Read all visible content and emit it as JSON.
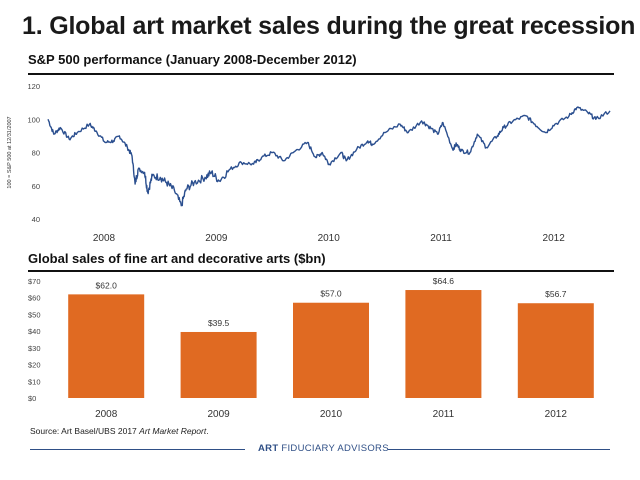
{
  "header": {
    "title": "1. Global art market sales during the great recession"
  },
  "chart_data": [
    {
      "type": "line",
      "title": "S&P 500 performance (January 2008-December 2012)",
      "ylabel": "100 = S&P 500 at 12/31/2007",
      "xlabel": "",
      "ylim": [
        40,
        120
      ],
      "yticks": [
        40,
        60,
        80,
        100,
        120
      ],
      "xticks": [
        "2008",
        "2009",
        "2010",
        "2011",
        "2012"
      ],
      "grid": false,
      "series": [
        {
          "color": "#2b4f8f",
          "points": [
            [
              "2008-01-01",
              100
            ],
            [
              "2008-01-20",
              91
            ],
            [
              "2008-02-10",
              95
            ],
            [
              "2008-03-10",
              88
            ],
            [
              "2008-04-05",
              92
            ],
            [
              "2008-05-15",
              97
            ],
            [
              "2008-06-05",
              93
            ],
            [
              "2008-07-05",
              86
            ],
            [
              "2008-08-01",
              87
            ],
            [
              "2008-08-20",
              90
            ],
            [
              "2008-09-15",
              83
            ],
            [
              "2008-09-30",
              78
            ],
            [
              "2008-10-10",
              61
            ],
            [
              "2008-10-20",
              70
            ],
            [
              "2008-11-10",
              68
            ],
            [
              "2008-11-20",
              56
            ],
            [
              "2008-12-05",
              66
            ],
            [
              "2008-12-31",
              65
            ],
            [
              "2009-01-20",
              62
            ],
            [
              "2009-02-15",
              57
            ],
            [
              "2009-03-09",
              48
            ],
            [
              "2009-03-25",
              58
            ],
            [
              "2009-04-20",
              62
            ],
            [
              "2009-05-25",
              65
            ],
            [
              "2009-06-15",
              68
            ],
            [
              "2009-07-10",
              63
            ],
            [
              "2009-08-15",
              70
            ],
            [
              "2009-09-20",
              74
            ],
            [
              "2009-10-30",
              73
            ],
            [
              "2009-11-25",
              77
            ],
            [
              "2009-12-31",
              80
            ],
            [
              "2010-02-05",
              75
            ],
            [
              "2010-03-15",
              81
            ],
            [
              "2010-04-23",
              86
            ],
            [
              "2010-05-20",
              77
            ],
            [
              "2010-06-10",
              80
            ],
            [
              "2010-07-02",
              73
            ],
            [
              "2010-08-10",
              80
            ],
            [
              "2010-08-27",
              75
            ],
            [
              "2010-09-30",
              82
            ],
            [
              "2010-11-05",
              87
            ],
            [
              "2010-11-20",
              85
            ],
            [
              "2010-12-31",
              92
            ],
            [
              "2011-02-18",
              97
            ],
            [
              "2011-03-16",
              92
            ],
            [
              "2011-04-29",
              99
            ],
            [
              "2011-05-20",
              96
            ],
            [
              "2011-06-20",
              91
            ],
            [
              "2011-07-07",
              98
            ],
            [
              "2011-08-08",
              82
            ],
            [
              "2011-08-20",
              85
            ],
            [
              "2011-09-05",
              81
            ],
            [
              "2011-10-03",
              80
            ],
            [
              "2011-10-27",
              91
            ],
            [
              "2011-11-25",
              83
            ],
            [
              "2011-12-31",
              90
            ],
            [
              "2012-01-20",
              95
            ],
            [
              "2012-02-20",
              99
            ],
            [
              "2012-04-02",
              102
            ],
            [
              "2012-05-01",
              97
            ],
            [
              "2012-06-04",
              92
            ],
            [
              "2012-07-05",
              97
            ],
            [
              "2012-08-20",
              102
            ],
            [
              "2012-09-14",
              107
            ],
            [
              "2012-10-20",
              104
            ],
            [
              "2012-11-15",
              100
            ],
            [
              "2012-12-31",
              105
            ]
          ]
        }
      ]
    },
    {
      "type": "bar",
      "title": "Global sales of fine art and decorative arts ($bn)",
      "xlabel": "",
      "ylabel": "",
      "ylim": [
        0,
        70
      ],
      "yticks": [
        0,
        10,
        20,
        30,
        40,
        50,
        60,
        70
      ],
      "ytick_labels": [
        "$0",
        "$10",
        "$20",
        "$30",
        "$40",
        "$50",
        "$60",
        "$70"
      ],
      "categories": [
        "2008",
        "2009",
        "2010",
        "2011",
        "2012"
      ],
      "values": [
        62.0,
        39.5,
        57.0,
        64.6,
        56.7
      ],
      "data_labels": [
        "$62.0",
        "$39.5",
        "$57.0",
        "$64.6",
        "$56.7"
      ],
      "bar_color": "#e06a22",
      "grid": false
    }
  ],
  "source": {
    "prefix": "Source: Art Basel/UBS 2017 ",
    "italic": "Art Market Report",
    "suffix": "."
  },
  "footer": {
    "brand_bold": "ART",
    "brand_rest": " FIDUCIARY ADVISORS",
    "color": "#2f4f86"
  }
}
